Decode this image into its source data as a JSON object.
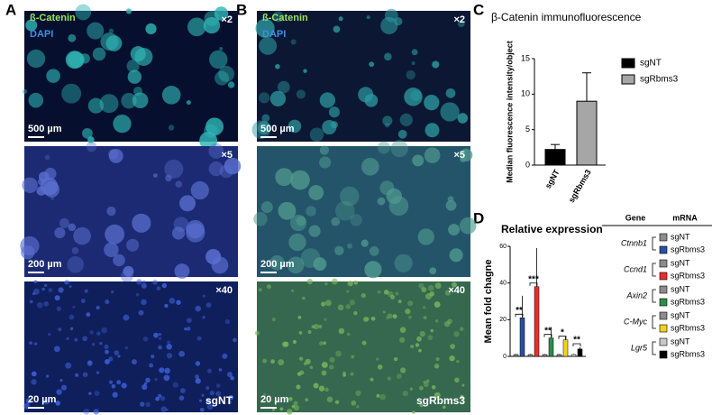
{
  "panel_letters": [
    "A",
    "B",
    "C",
    "D"
  ],
  "images": [
    {
      "stain1": "ß-Catenin",
      "stain2": "DAPI",
      "magnifications": [
        "×2",
        "×5",
        "×40"
      ],
      "scale_bars": [
        "500 µm",
        "200 µm",
        "20 µm"
      ],
      "condition": "sgNT"
    },
    {
      "stain1": "ß-Catenin",
      "stain2": "DAPI",
      "magnifications": [
        "×2",
        "×5",
        "×40"
      ],
      "scale_bars": [
        "500 µm",
        "200 µm",
        "20 µm"
      ],
      "condition": "sgRbms3"
    }
  ],
  "chart_data": [
    {
      "type": "bar",
      "title": "β-Catenin immunofluorescence",
      "y_label": "Median fluorescence intensity/object",
      "categories": [
        "sgNT",
        "sgRbms3"
      ],
      "values": [
        2.2,
        9.0
      ],
      "errors": [
        0.7,
        4.0
      ],
      "colors": [
        "#000000",
        "#a6a6a6"
      ],
      "ylim": [
        0,
        15
      ],
      "yticks": [
        0,
        5,
        10,
        15
      ],
      "legend": "right"
    },
    {
      "type": "grouped-bar",
      "title": "Relative expression",
      "y_label": "Mean fold chagne",
      "categories": [
        "Ctnnb1",
        "Ccnd1",
        "Axin2",
        "C-Myc",
        "Lgr5"
      ],
      "series": [
        {
          "name": "sgNT",
          "colors": [
            "#8c8c8c",
            "#8c8c8c",
            "#8c8c8c",
            "#8c8c8c",
            "#c8c8c8"
          ],
          "values": [
            1,
            1,
            1,
            1,
            1
          ],
          "errors": [
            0.3,
            0.3,
            0.3,
            0.3,
            0.3
          ]
        },
        {
          "name": "sgRbms3",
          "colors": [
            "#2a4f9e",
            "#e4312b",
            "#2e8b4e",
            "#f2d21b",
            "#000000"
          ],
          "values": [
            21,
            38,
            10,
            9,
            4
          ],
          "errors": [
            12,
            21,
            6,
            2,
            1
          ]
        }
      ],
      "significance": [
        "**",
        "***",
        "**",
        "*",
        "**"
      ],
      "ylim": [
        0,
        60
      ],
      "yticks": [
        0,
        20,
        40,
        60
      ],
      "legend_headers": [
        "Gene",
        "mRNA"
      ]
    }
  ]
}
